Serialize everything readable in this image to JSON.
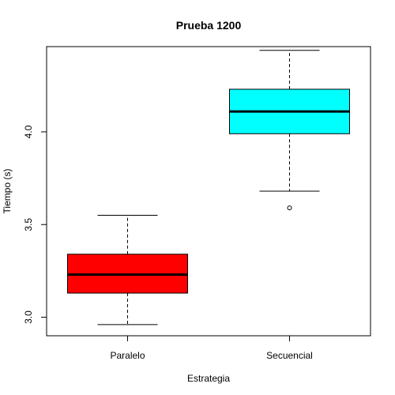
{
  "chart_data": {
    "type": "boxplot",
    "title": "Prueba 1200",
    "xlabel": "Estrategia",
    "ylabel": "Tiempo (s)",
    "ylim": [
      2.9,
      4.46
    ],
    "yticks": [
      "3.0",
      "3.5",
      "4.0"
    ],
    "grid": false,
    "categories": [
      "Paralelo",
      "Secuencial"
    ],
    "boxes": [
      {
        "category": "Paralelo",
        "color": "#ff0000",
        "whisker_low": 2.96,
        "q1": 3.13,
        "median": 3.23,
        "q3": 3.34,
        "whisker_high": 3.55,
        "outliers": []
      },
      {
        "category": "Secuencial",
        "color": "#00ffff",
        "whisker_low": 3.68,
        "q1": 3.99,
        "median": 4.11,
        "q3": 4.23,
        "whisker_high": 4.44,
        "outliers": [
          3.59
        ]
      }
    ]
  }
}
